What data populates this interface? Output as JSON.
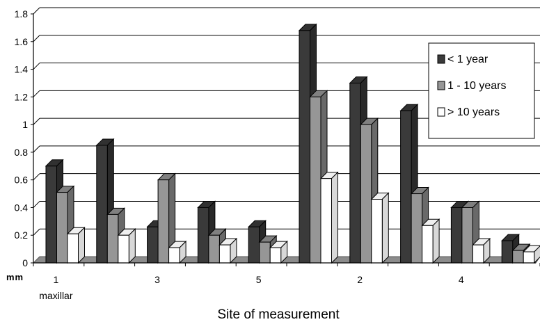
{
  "chart_data": {
    "type": "bar",
    "style": "3d-clustered",
    "categories": [
      "1",
      "",
      "3",
      "",
      "5",
      "",
      "2",
      "",
      "4",
      ""
    ],
    "category_sublabels": [
      "maxillar",
      "",
      "",
      "",
      "",
      "",
      "",
      "",
      "",
      ""
    ],
    "series": [
      {
        "name": "< 1 year",
        "color": "#3a3a3a",
        "values": [
          0.7,
          0.85,
          0.26,
          0.4,
          0.26,
          1.68,
          1.3,
          1.1,
          0.4,
          0.16
        ]
      },
      {
        "name": "1 - 10 years",
        "color": "#969696",
        "values": [
          0.51,
          0.35,
          0.6,
          0.2,
          0.15,
          1.2,
          1.0,
          0.5,
          0.4,
          0.09
        ]
      },
      {
        "name": "> 10 years",
        "color": "#ffffff",
        "values": [
          0.21,
          0.2,
          0.11,
          0.13,
          0.11,
          0.61,
          0.46,
          0.27,
          0.13,
          0.08
        ]
      }
    ],
    "ylim": [
      0,
      1.8
    ],
    "yticks": [
      "0",
      "0.2",
      "0.4",
      "0.6",
      "0.8",
      "1",
      "1.2",
      "1.4",
      "1.6",
      "1.8"
    ],
    "ylabel": "mm",
    "xlabel": "Site of measurement",
    "grid": true,
    "legend_position": "right"
  }
}
